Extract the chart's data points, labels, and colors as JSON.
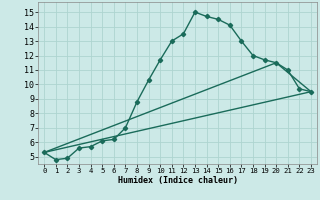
{
  "xlabel": "Humidex (Indice chaleur)",
  "background_color": "#cce9e7",
  "line_color": "#1a6b5a",
  "grid_color": "#aed4d0",
  "xlim": [
    -0.5,
    23.5
  ],
  "ylim": [
    4.5,
    15.7
  ],
  "xticks": [
    0,
    1,
    2,
    3,
    4,
    5,
    6,
    7,
    8,
    9,
    10,
    11,
    12,
    13,
    14,
    15,
    16,
    17,
    18,
    19,
    20,
    21,
    22,
    23
  ],
  "yticks": [
    5,
    6,
    7,
    8,
    9,
    10,
    11,
    12,
    13,
    14,
    15
  ],
  "line1_x": [
    0,
    1,
    2,
    3,
    4,
    5,
    6,
    7,
    8,
    9,
    10,
    11,
    12,
    13,
    14,
    15,
    16,
    17,
    18,
    19,
    20,
    21,
    22,
    23
  ],
  "line1_y": [
    5.3,
    4.8,
    4.9,
    5.6,
    5.7,
    6.1,
    6.2,
    7.0,
    8.8,
    10.3,
    11.7,
    13.0,
    13.5,
    15.0,
    14.7,
    14.5,
    14.1,
    13.0,
    12.0,
    11.7,
    11.5,
    11.0,
    9.7,
    9.5
  ],
  "line2_x": [
    0,
    23
  ],
  "line2_y": [
    5.3,
    9.5
  ],
  "line3_x": [
    0,
    20,
    23
  ],
  "line3_y": [
    5.3,
    11.5,
    9.5
  ],
  "xlabel_fontsize": 6.0,
  "tick_fontsize_x": 5.2,
  "tick_fontsize_y": 6.0
}
